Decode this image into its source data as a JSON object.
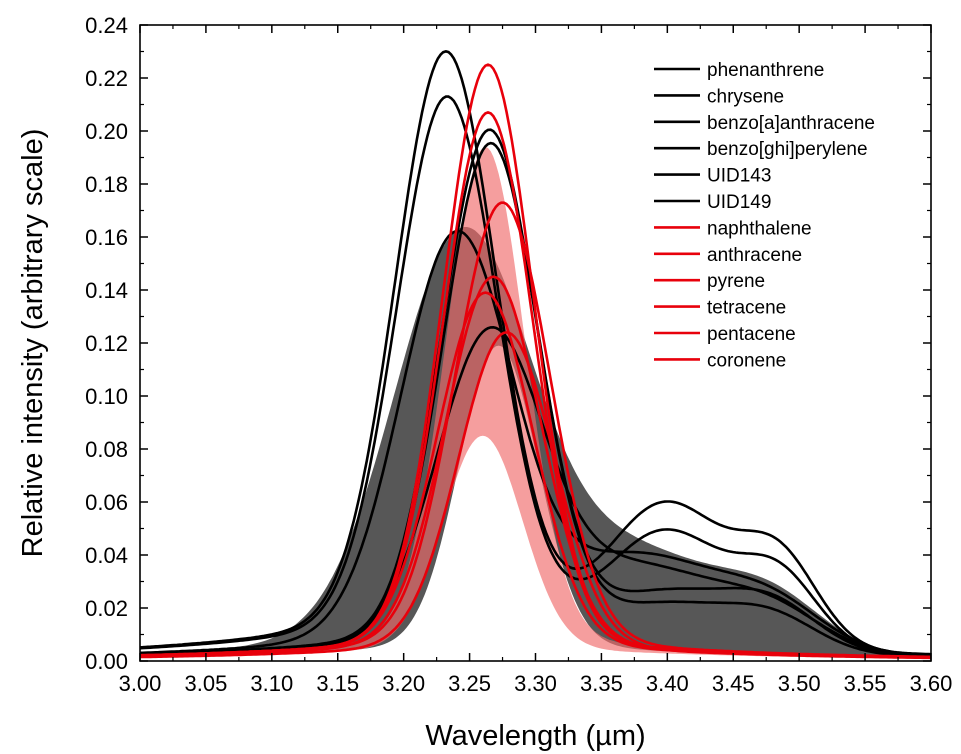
{
  "chart_data": {
    "type": "line",
    "xlabel": "Wavelength (µm)",
    "ylabel": "Relative intensity (arbitrary scale)",
    "xlim": [
      3.0,
      3.6
    ],
    "ylim": [
      0.0,
      0.24
    ],
    "x_ticks": [
      "3.00",
      "3.05",
      "3.10",
      "3.15",
      "3.20",
      "3.25",
      "3.30",
      "3.35",
      "3.40",
      "3.45",
      "3.50",
      "3.55",
      "3.60"
    ],
    "y_ticks": [
      "0.00",
      "0.02",
      "0.04",
      "0.06",
      "0.08",
      "0.10",
      "0.12",
      "0.14",
      "0.16",
      "0.18",
      "0.20",
      "0.22",
      "0.24"
    ],
    "grid": false,
    "legend_position": "top-right",
    "colors": {
      "black": "#000000",
      "red": "#e8000b",
      "black_band": "#3a3a3a",
      "red_band": "#f06a6a"
    },
    "series": [
      {
        "name": "phenanthrene",
        "color": "#000000",
        "center": 3.232,
        "peak": 0.214,
        "width": 0.038,
        "wing": 0.016,
        "shoulders": [
          [
            3.4,
            0.052,
            0.045
          ],
          [
            3.485,
            0.032,
            0.03
          ]
        ]
      },
      {
        "name": "chrysene",
        "color": "#000000",
        "center": 3.233,
        "peak": 0.198,
        "width": 0.038,
        "wing": 0.015,
        "shoulders": [
          [
            3.4,
            0.042,
            0.045
          ],
          [
            3.485,
            0.026,
            0.03
          ]
        ]
      },
      {
        "name": "benzo[a]anthracene",
        "color": "#000000",
        "center": 3.265,
        "peak": 0.19,
        "width": 0.036,
        "wing": 0.01,
        "shoulders": [
          [
            3.4,
            0.02,
            0.05
          ],
          [
            3.48,
            0.016,
            0.035
          ]
        ]
      },
      {
        "name": "benzo[ghi]perylene",
        "color": "#000000",
        "center": 3.266,
        "peak": 0.186,
        "width": 0.036,
        "wing": 0.009,
        "shoulders": [
          [
            3.4,
            0.016,
            0.05
          ],
          [
            3.48,
            0.012,
            0.035
          ]
        ]
      },
      {
        "name": "UID143",
        "color": "#000000",
        "center": 3.24,
        "peak": 0.15,
        "width": 0.042,
        "wing": 0.01,
        "shoulders": [
          [
            3.38,
            0.034,
            0.06
          ],
          [
            3.48,
            0.016,
            0.04
          ]
        ]
      },
      {
        "name": "UID149",
        "color": "#000000",
        "center": 3.265,
        "peak": 0.113,
        "width": 0.04,
        "wing": 0.008,
        "shoulders": [
          [
            3.38,
            0.03,
            0.06
          ],
          [
            3.48,
            0.014,
            0.04
          ]
        ]
      },
      {
        "name": "naphthalene",
        "color": "#e8000b",
        "center": 3.264,
        "peak": 0.217,
        "width": 0.034,
        "wing": 0.008,
        "shoulders": []
      },
      {
        "name": "anthracene",
        "color": "#e8000b",
        "center": 3.264,
        "peak": 0.199,
        "width": 0.034,
        "wing": 0.008,
        "shoulders": []
      },
      {
        "name": "pyrene",
        "color": "#e8000b",
        "center": 3.275,
        "peak": 0.165,
        "width": 0.036,
        "wing": 0.008,
        "shoulders": []
      },
      {
        "name": "tetracene",
        "color": "#e8000b",
        "center": 3.268,
        "peak": 0.138,
        "width": 0.036,
        "wing": 0.007,
        "shoulders": []
      },
      {
        "name": "pentacene",
        "color": "#e8000b",
        "center": 3.262,
        "peak": 0.132,
        "width": 0.036,
        "wing": 0.007,
        "shoulders": []
      },
      {
        "name": "coronene",
        "color": "#e8000b",
        "center": 3.278,
        "peak": 0.118,
        "width": 0.036,
        "wing": 0.006,
        "shoulders": []
      }
    ],
    "bands": [
      {
        "color": "#3a3a3a",
        "lower": {
          "center": 3.272,
          "peak": 0.113,
          "width": 0.03,
          "wing": 0.006,
          "shoulders": []
        },
        "upper": {
          "center": 3.245,
          "peak": 0.151,
          "width": 0.052,
          "wing": 0.01,
          "shoulders": [
            [
              3.38,
              0.034,
              0.06
            ],
            [
              3.48,
              0.018,
              0.04
            ]
          ]
        }
      },
      {
        "color": "#f06a6a",
        "lower": {
          "center": 3.26,
          "peak": 0.08,
          "width": 0.03,
          "wing": 0.005,
          "shoulders": []
        },
        "upper": {
          "center": 3.262,
          "peak": 0.185,
          "width": 0.03,
          "wing": 0.009,
          "shoulders": []
        }
      }
    ]
  }
}
